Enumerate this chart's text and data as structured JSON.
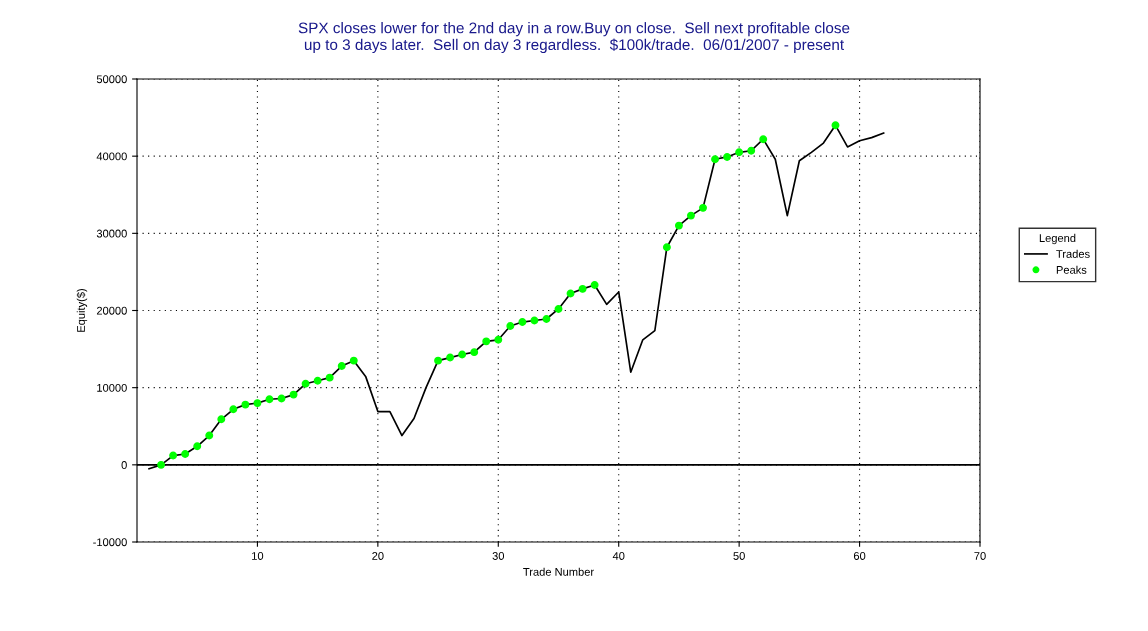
{
  "chart_data": {
    "type": "line",
    "title": "SPX closes lower for the 2nd day in a row.Buy on close.  Sell next profitable close\nup to 3 days later.  Sell on day 3 regardless.  $100k/trade.  06/01/2007 - present",
    "xlabel": "Trade Number",
    "ylabel": "Equity($)",
    "legend_title": "Legend",
    "series": [
      {
        "name": "Trades",
        "color": "#000000",
        "marker": "none",
        "line_style": "solid",
        "x": [
          1,
          2,
          3,
          4,
          5,
          6,
          7,
          8,
          9,
          10,
          11,
          12,
          13,
          14,
          15,
          16,
          17,
          18,
          19,
          20,
          21,
          22,
          23,
          24,
          25,
          26,
          27,
          28,
          29,
          30,
          31,
          32,
          33,
          34,
          35,
          36,
          37,
          38,
          39,
          40,
          41,
          42,
          43,
          44,
          45,
          46,
          47,
          48,
          49,
          50,
          51,
          52,
          53,
          54,
          55,
          56,
          57,
          58,
          59,
          60,
          61,
          62
        ],
        "values": [
          -500,
          0,
          1200,
          1400,
          2400,
          3800,
          5900,
          7200,
          7800,
          8000,
          8500,
          8600,
          9100,
          10500,
          10900,
          11300,
          12800,
          13500,
          11400,
          6900,
          6900,
          3800,
          6000,
          10000,
          13500,
          13900,
          14300,
          14600,
          16000,
          16200,
          18000,
          18500,
          18700,
          18900,
          20200,
          22200,
          22800,
          23300,
          20800,
          22400,
          12000,
          16200,
          17400,
          28200,
          31000,
          32300,
          33300,
          39600,
          39900,
          40500,
          40700,
          42200,
          39600,
          32300,
          39400,
          40500,
          41700,
          44000,
          41200,
          42000,
          42400,
          43000
        ]
      },
      {
        "name": "Peaks",
        "type": "scatter",
        "color": "#00ff00",
        "marker": "circle",
        "x": [
          2,
          3,
          4,
          5,
          6,
          7,
          8,
          9,
          10,
          11,
          12,
          13,
          14,
          15,
          16,
          17,
          18,
          25,
          26,
          27,
          28,
          29,
          30,
          31,
          32,
          33,
          34,
          35,
          36,
          37,
          38,
          44,
          45,
          46,
          47,
          48,
          49,
          50,
          51,
          52,
          58
        ],
        "values": [
          0,
          1200,
          1400,
          2400,
          3800,
          5900,
          7200,
          7800,
          8000,
          8500,
          8600,
          9100,
          10500,
          10900,
          11300,
          12800,
          13500,
          13500,
          13900,
          14300,
          14600,
          16000,
          16200,
          18000,
          18500,
          18700,
          18900,
          20200,
          22200,
          22800,
          23300,
          28200,
          31000,
          32300,
          33300,
          39600,
          39900,
          40500,
          40700,
          42200,
          44000
        ]
      }
    ],
    "xlim": [
      0,
      70
    ],
    "xticks": [
      10,
      20,
      30,
      40,
      50,
      60,
      70
    ],
    "ylim": [
      -10000,
      50000
    ],
    "yticks": [
      -10000,
      0,
      10000,
      20000,
      30000,
      40000,
      50000
    ],
    "ref_lines": [
      {
        "axis": "y",
        "value": 0,
        "color": "#000000",
        "line_style": "solid"
      }
    ],
    "grid": true,
    "legend": "right"
  }
}
